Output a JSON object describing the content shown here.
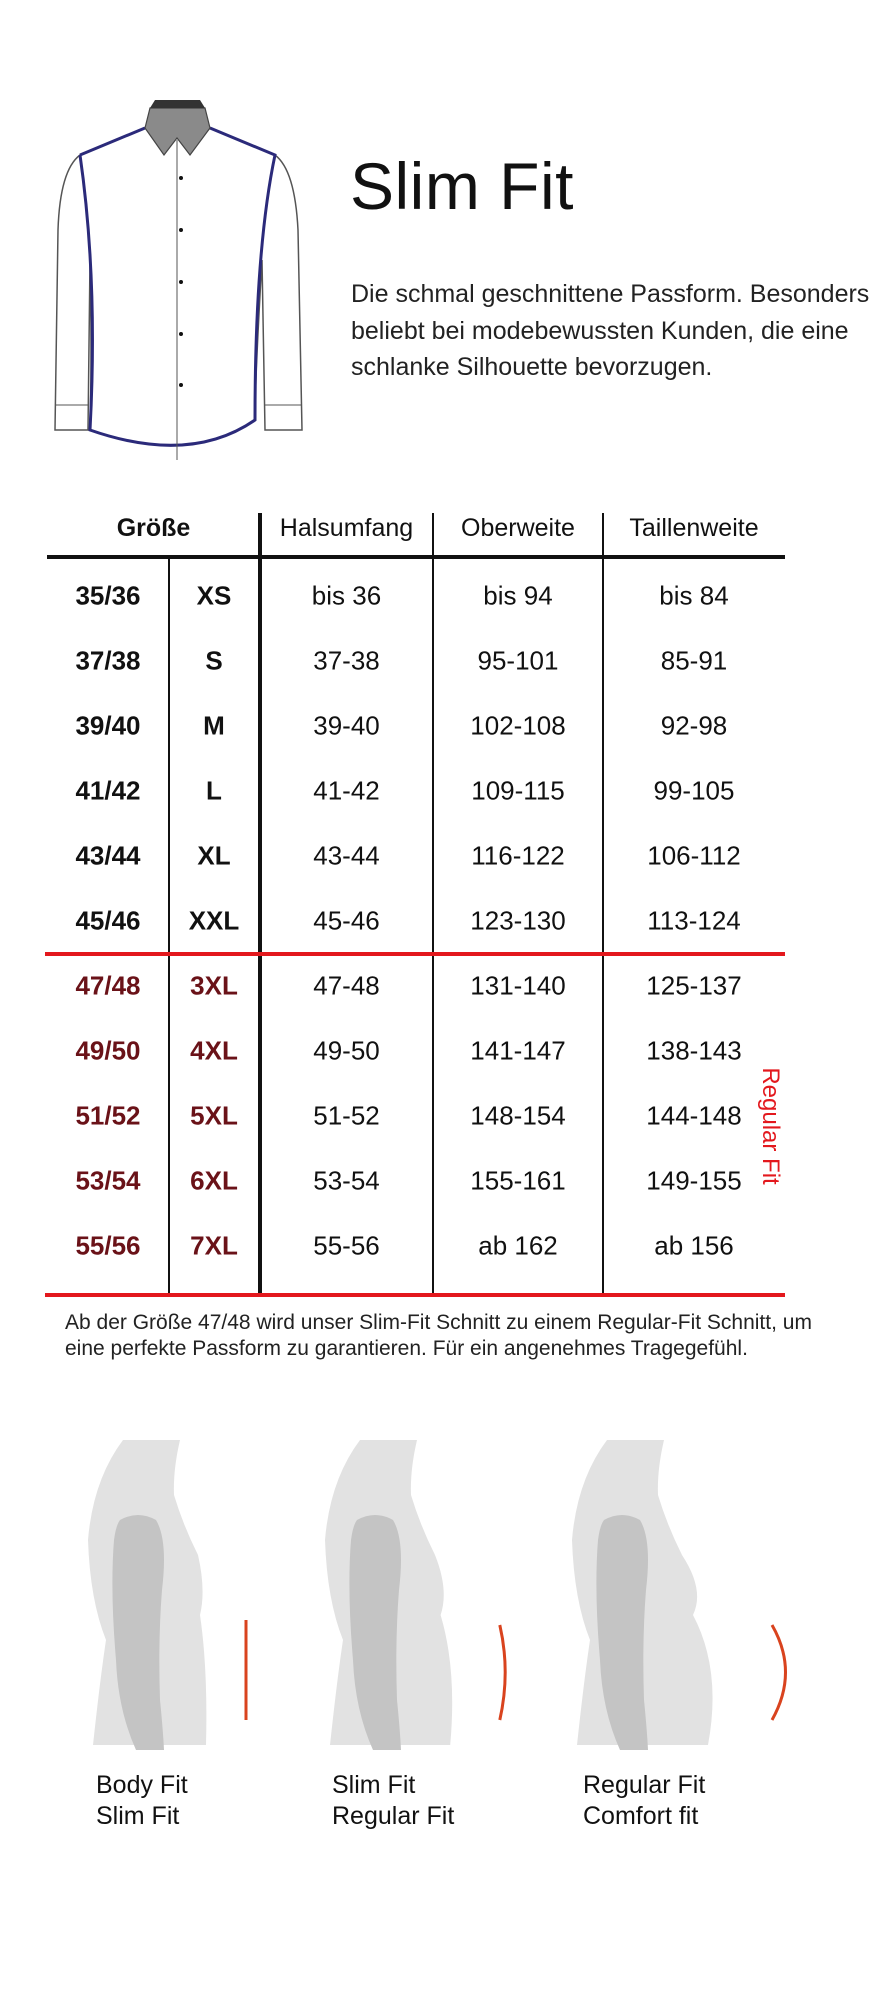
{
  "header": {
    "title": "Slim Fit",
    "description": "Die schmal geschnittene Passform. Besonders beliebt bei modebewussten Kunden, die eine schlanke Silhouette bevorzugen."
  },
  "colors": {
    "accent_red": "#e3181d",
    "dark_red": "#6a1218",
    "shirt_outline": "#2b2a7a",
    "fit_line": "#d9431e"
  },
  "table": {
    "headers": {
      "size": "Größe",
      "neck": "Halsumfang",
      "chest": "Oberweite",
      "waist": "Taillenweite"
    },
    "rows": [
      {
        "eu": "35/36",
        "int": "XS",
        "neck": "bis 36",
        "chest": "bis 94",
        "waist": "bis 84",
        "regular": false
      },
      {
        "eu": "37/38",
        "int": "S",
        "neck": "37-38",
        "chest": "95-101",
        "waist": "85-91",
        "regular": false
      },
      {
        "eu": "39/40",
        "int": "M",
        "neck": "39-40",
        "chest": "102-108",
        "waist": "92-98",
        "regular": false
      },
      {
        "eu": "41/42",
        "int": "L",
        "neck": "41-42",
        "chest": "109-115",
        "waist": "99-105",
        "regular": false
      },
      {
        "eu": "43/44",
        "int": "XL",
        "neck": "43-44",
        "chest": "116-122",
        "waist": "106-112",
        "regular": false
      },
      {
        "eu": "45/46",
        "int": "XXL",
        "neck": "45-46",
        "chest": "123-130",
        "waist": "113-124",
        "regular": false
      },
      {
        "eu": "47/48",
        "int": "3XL",
        "neck": "47-48",
        "chest": "131-140",
        "waist": "125-137",
        "regular": true
      },
      {
        "eu": "49/50",
        "int": "4XL",
        "neck": "49-50",
        "chest": "141-147",
        "waist": "138-143",
        "regular": true
      },
      {
        "eu": "51/52",
        "int": "5XL",
        "neck": "51-52",
        "chest": "148-154",
        "waist": "144-148",
        "regular": true
      },
      {
        "eu": "53/54",
        "int": "6XL",
        "neck": "53-54",
        "chest": "155-161",
        "waist": "149-155",
        "regular": true
      },
      {
        "eu": "55/56",
        "int": "7XL",
        "neck": "55-56",
        "chest": "ab 162",
        "waist": "ab 156",
        "regular": true
      }
    ],
    "regular_fit_label": "Regular Fit"
  },
  "note": "Ab der Größe 47/48 wird unser Slim-Fit Schnitt zu einem Regular-Fit Schnitt, um eine perfekte Passform zu garantieren. Für ein angenehmes Tragegefühl.",
  "fits": [
    {
      "line1": "Body Fit",
      "line2": "Slim Fit",
      "curve": "straight"
    },
    {
      "line1": "Slim Fit",
      "line2": "Regular Fit",
      "curve": "slight"
    },
    {
      "line1": "Regular Fit",
      "line2": "Comfort fit",
      "curve": "strong"
    }
  ]
}
